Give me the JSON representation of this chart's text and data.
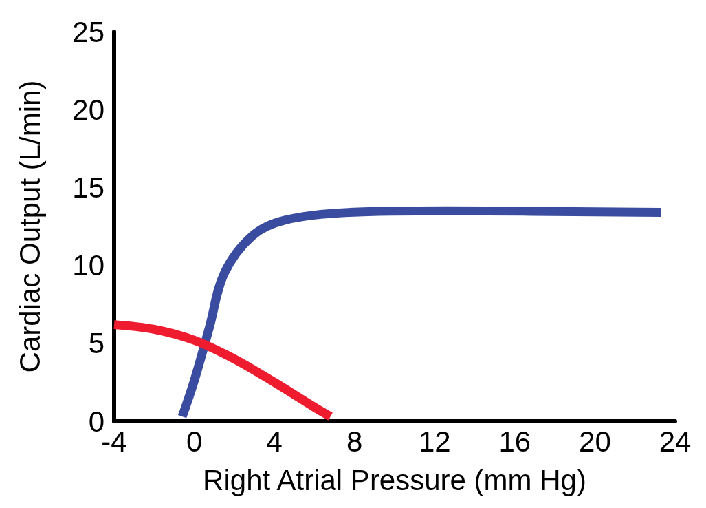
{
  "chart_data": {
    "type": "line",
    "xlabel": "Right Atrial Pressure (mm Hg)",
    "ylabel": "Cardiac Output (L/min)",
    "xlim": [
      -4,
      24
    ],
    "xticks": [
      -4,
      0,
      4,
      8,
      12,
      16,
      20,
      24
    ],
    "ylim": [
      0,
      25
    ],
    "yticks": [
      0,
      5,
      10,
      15,
      20,
      25
    ],
    "grid": false,
    "marker": "none",
    "line_style": "solid",
    "series": [
      {
        "color": "#3a4ca0",
        "x": [
          -0.6,
          0,
          0.75,
          1.5,
          2.9,
          4.5,
          7.7,
          12.6,
          23.3
        ],
        "values": [
          0.3,
          2.6,
          6,
          9.5,
          11.9,
          12.9,
          13.4,
          13.5,
          13.4
        ]
      },
      {
        "color": "#ee1c2e",
        "x": [
          -4,
          -2,
          0,
          2,
          4,
          6,
          6.8
        ],
        "values": [
          6.2,
          5.9,
          5.2,
          4.0,
          2.5,
          0.9,
          0.3
        ]
      }
    ]
  }
}
